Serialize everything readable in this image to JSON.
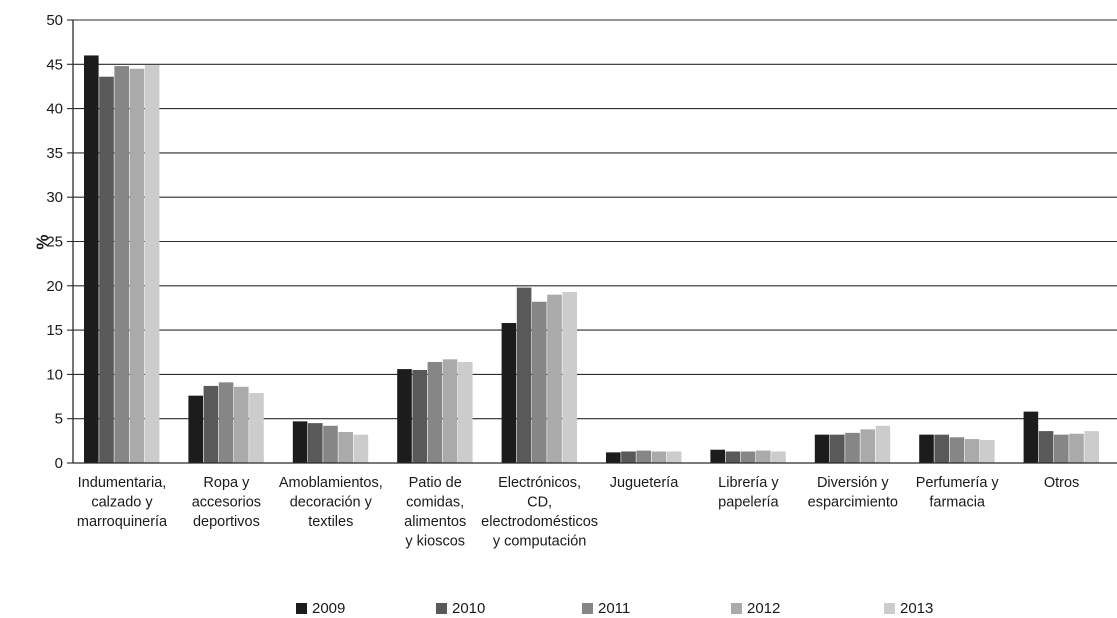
{
  "chart_data": {
    "type": "bar",
    "title": "",
    "xlabel": "",
    "ylabel": "%",
    "ylim": [
      0,
      50
    ],
    "yticks": [
      0,
      5,
      10,
      15,
      20,
      25,
      30,
      35,
      40,
      45,
      50
    ],
    "grid": true,
    "legend_position": "bottom",
    "categories": [
      [
        "Indumentaria,",
        "calzado y",
        "marroquinería"
      ],
      [
        "Ropa y",
        "accesorios",
        "deportivos"
      ],
      [
        "Amoblamientos,",
        "decoración y",
        "textiles"
      ],
      [
        "Patio de",
        "comidas,",
        "alimentos",
        "y kioscos"
      ],
      [
        "Electrónicos,",
        "CD,",
        "electrodomésticos",
        "y computación"
      ],
      [
        "Juguetería"
      ],
      [
        "Librería y",
        "papelería"
      ],
      [
        "Diversión y",
        "esparcimiento"
      ],
      [
        "Perfumería y",
        "farmacia"
      ],
      [
        "Otros"
      ]
    ],
    "series": [
      {
        "name": "2009",
        "color": "#1c1c1c",
        "values": [
          46.0,
          7.6,
          4.7,
          10.6,
          15.8,
          1.2,
          1.5,
          3.2,
          3.2,
          5.8
        ]
      },
      {
        "name": "2010",
        "color": "#595959",
        "values": [
          43.6,
          8.7,
          4.5,
          10.5,
          19.8,
          1.3,
          1.3,
          3.2,
          3.2,
          3.6
        ]
      },
      {
        "name": "2011",
        "color": "#868686",
        "values": [
          44.8,
          9.1,
          4.2,
          11.4,
          18.2,
          1.4,
          1.3,
          3.4,
          2.9,
          3.2
        ]
      },
      {
        "name": "2012",
        "color": "#aaaaaa",
        "values": [
          44.5,
          8.6,
          3.5,
          11.7,
          19.0,
          1.3,
          1.4,
          3.8,
          2.7,
          3.3
        ]
      },
      {
        "name": "2013",
        "color": "#cccccc",
        "values": [
          44.9,
          7.9,
          3.2,
          11.4,
          19.3,
          1.3,
          1.3,
          4.2,
          2.6,
          3.6
        ]
      }
    ]
  }
}
